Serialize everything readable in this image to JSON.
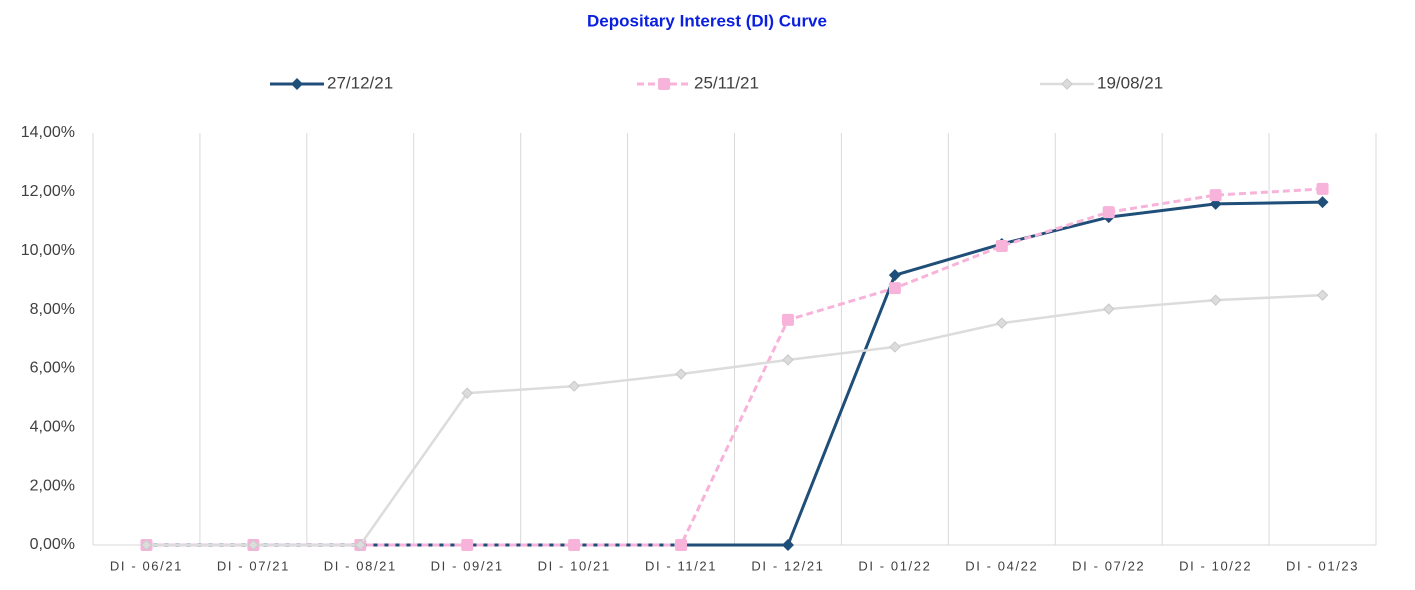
{
  "chart_data": {
    "type": "line",
    "title": "Depositary Interest (DI) Curve",
    "categories": [
      "DI - 06/21",
      "DI - 07/21",
      "DI - 08/21",
      "DI - 09/21",
      "DI - 10/21",
      "DI - 11/21",
      "DI - 12/21",
      "DI - 01/22",
      "DI - 04/22",
      "DI - 07/22",
      "DI - 10/22",
      "DI - 01/23"
    ],
    "series": [
      {
        "name": "27/12/21",
        "color": "#1f4e79",
        "marker": "diamond",
        "dashed": false,
        "values": [
          0,
          0,
          0,
          0,
          0,
          0,
          0,
          9.17,
          10.23,
          11.14,
          11.59,
          11.65
        ]
      },
      {
        "name": "25/11/21",
        "color": "#f7b3d9",
        "marker": "square",
        "dashed": true,
        "values": [
          0,
          0,
          0,
          0,
          0,
          0,
          7.65,
          8.73,
          10.16,
          11.31,
          11.89,
          12.1
        ]
      },
      {
        "name": "19/08/21",
        "color": "#dcdcdc",
        "marker": "diamond",
        "dashed": false,
        "values": [
          0,
          0,
          0,
          5.16,
          5.4,
          5.81,
          6.29,
          6.73,
          7.54,
          8.02,
          8.32,
          8.49
        ]
      }
    ],
    "ylim": [
      0,
      14
    ],
    "yticks": [
      {
        "value": 0,
        "label": "0,00%"
      },
      {
        "value": 2,
        "label": "2,00%"
      },
      {
        "value": 4,
        "label": "4,00%"
      },
      {
        "value": 6,
        "label": "6,00%"
      },
      {
        "value": 8,
        "label": "8,00%"
      },
      {
        "value": 10,
        "label": "10,00%"
      },
      {
        "value": 12,
        "label": "12,00%"
      },
      {
        "value": 14,
        "label": "14,00%"
      }
    ],
    "grid": "vertical",
    "legend": "top"
  }
}
